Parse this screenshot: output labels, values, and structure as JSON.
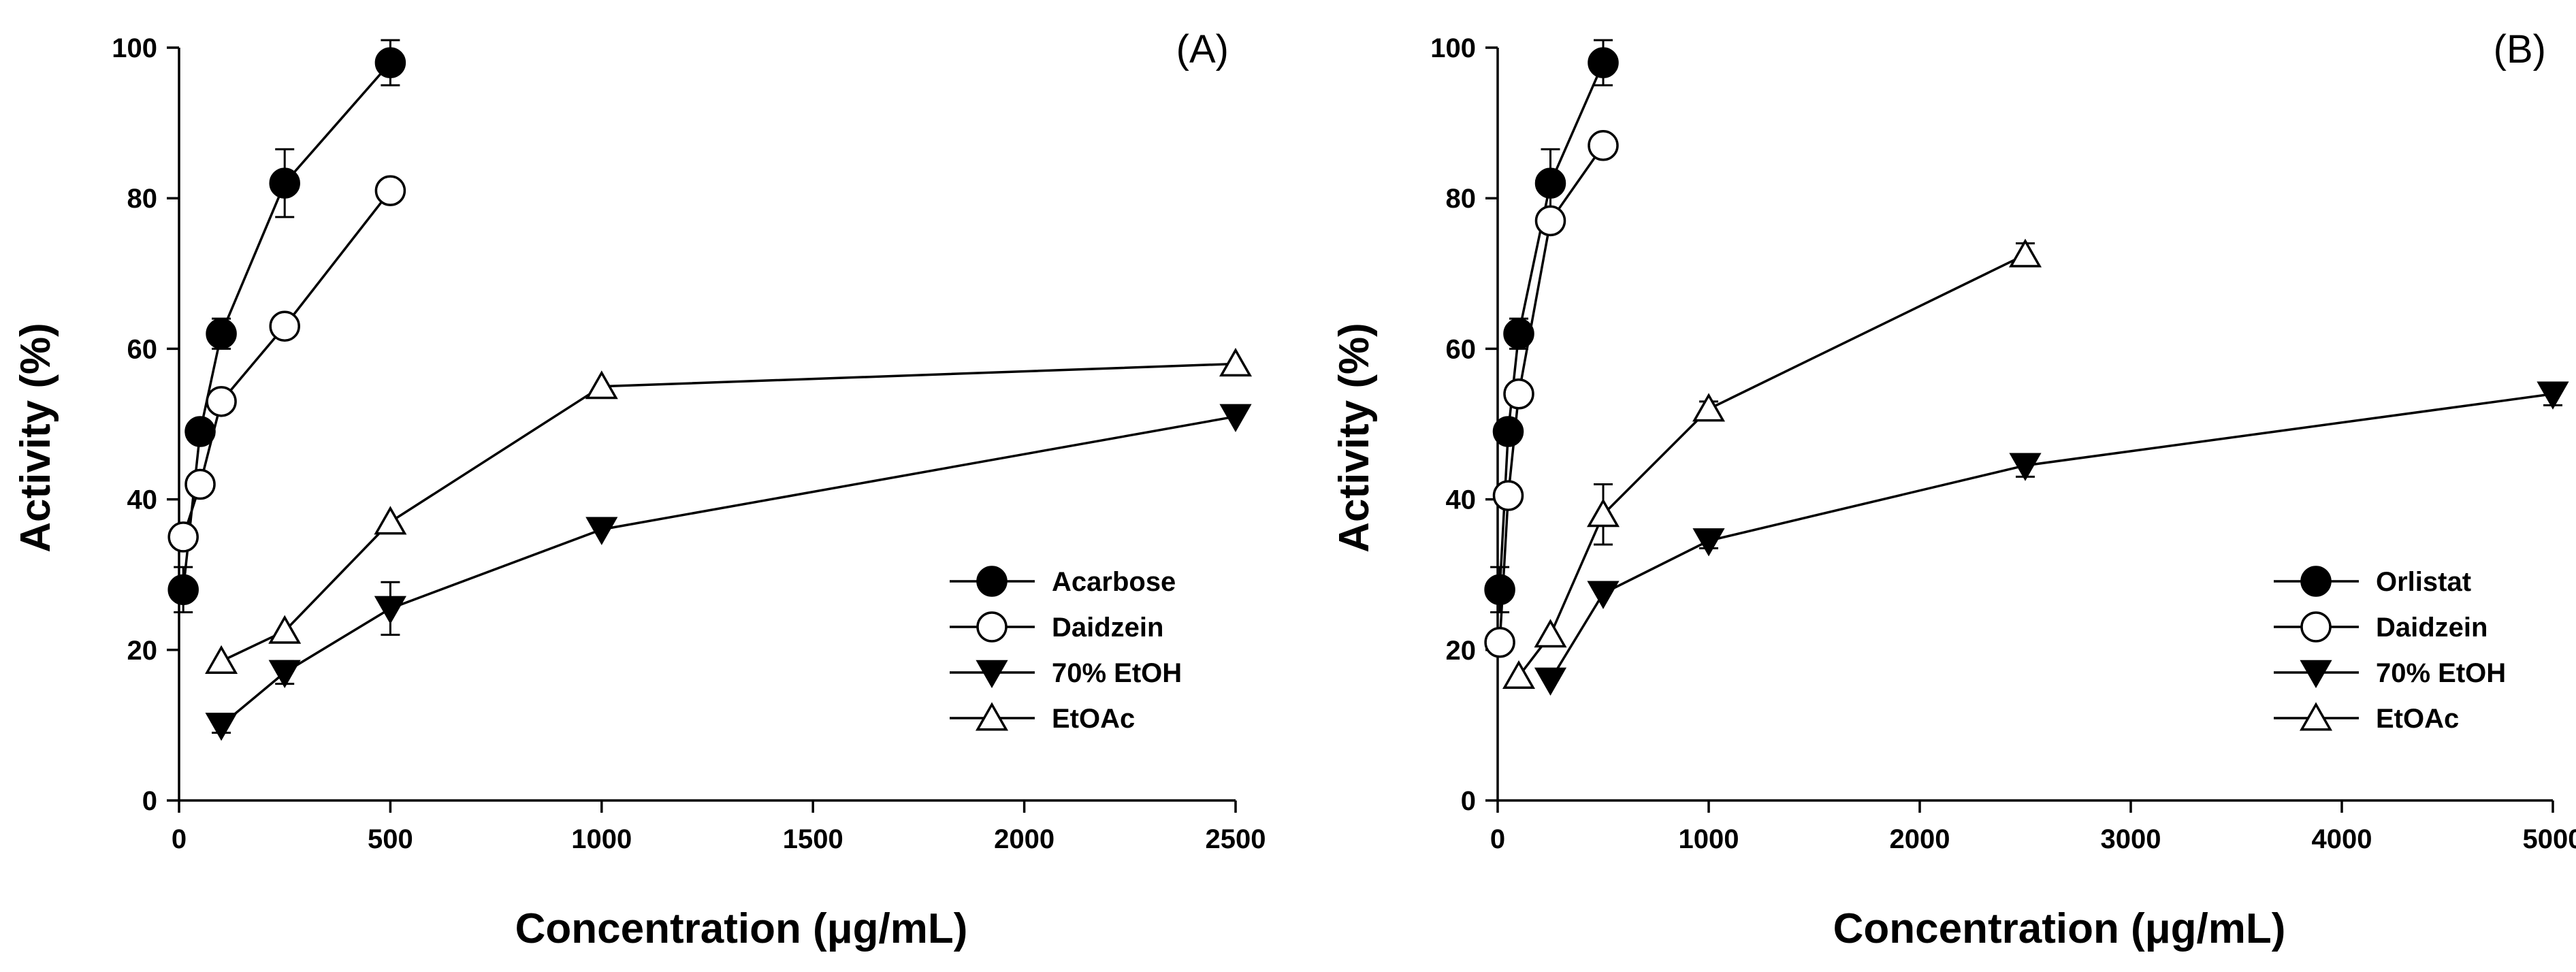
{
  "chart_data": [
    {
      "type": "line",
      "panel_label": "(A)",
      "xlabel": "Concentration (μg/mL)",
      "ylabel": "Activity (%)",
      "xlim": [
        0,
        2500
      ],
      "ylim": [
        0,
        100
      ],
      "xticks": [
        0,
        500,
        1000,
        1500,
        2000,
        2500
      ],
      "yticks": [
        0,
        20,
        40,
        60,
        80,
        100
      ],
      "legend_position": "bottom-right",
      "series": [
        {
          "name": "Acarbose",
          "marker": "circle-filled",
          "x": [
            10,
            50,
            100,
            250,
            500
          ],
          "y": [
            28,
            49,
            62,
            82,
            98
          ],
          "err": [
            3,
            1,
            2,
            4.5,
            3
          ]
        },
        {
          "name": "Daidzein",
          "marker": "circle-open",
          "x": [
            10,
            50,
            100,
            250,
            500
          ],
          "y": [
            35,
            42,
            53,
            63,
            81
          ],
          "err": [
            0,
            0,
            0,
            0,
            0
          ]
        },
        {
          "name": "70% EtOH",
          "marker": "triangle-down-filled",
          "x": [
            100,
            250,
            500,
            1000,
            2500
          ],
          "y": [
            10,
            17,
            25.5,
            36,
            51
          ],
          "err": [
            1,
            1.5,
            3.5,
            0,
            0
          ]
        },
        {
          "name": "EtOAc",
          "marker": "triangle-up-open",
          "x": [
            100,
            250,
            500,
            1000,
            2500
          ],
          "y": [
            18.5,
            22.5,
            37,
            55,
            58
          ],
          "err": [
            0,
            0,
            0,
            0,
            0
          ]
        }
      ]
    },
    {
      "type": "line",
      "panel_label": "(B)",
      "xlabel": "Concentration (μg/mL)",
      "ylabel": "Activity (%)",
      "xlim": [
        0,
        5000
      ],
      "ylim": [
        0,
        100
      ],
      "xticks": [
        0,
        1000,
        2000,
        3000,
        4000,
        5000
      ],
      "yticks": [
        0,
        20,
        40,
        60,
        80,
        100
      ],
      "legend_position": "bottom-right",
      "series": [
        {
          "name": "Orlistat",
          "marker": "circle-filled",
          "x": [
            10,
            50,
            100,
            250,
            500
          ],
          "y": [
            28,
            49,
            62,
            82,
            98
          ],
          "err": [
            3,
            1,
            2,
            4.5,
            3
          ]
        },
        {
          "name": "Daidzein",
          "marker": "circle-open",
          "x": [
            10,
            50,
            100,
            250,
            500
          ],
          "y": [
            21,
            40.5,
            54,
            77,
            87
          ],
          "err": [
            0,
            1,
            1,
            0,
            0
          ]
        },
        {
          "name": "70% EtOH",
          "marker": "triangle-down-filled",
          "x": [
            250,
            500,
            1000,
            2500,
            5000
          ],
          "y": [
            16,
            27.5,
            34.5,
            44.5,
            54
          ],
          "err": [
            0,
            0,
            1,
            1.5,
            1.5
          ]
        },
        {
          "name": "EtOAc",
          "marker": "triangle-up-open",
          "x": [
            100,
            250,
            500,
            1000,
            2500
          ],
          "y": [
            16.5,
            22,
            38,
            52,
            72.5
          ],
          "err": [
            0,
            0,
            4,
            1,
            1.5
          ]
        }
      ]
    }
  ]
}
